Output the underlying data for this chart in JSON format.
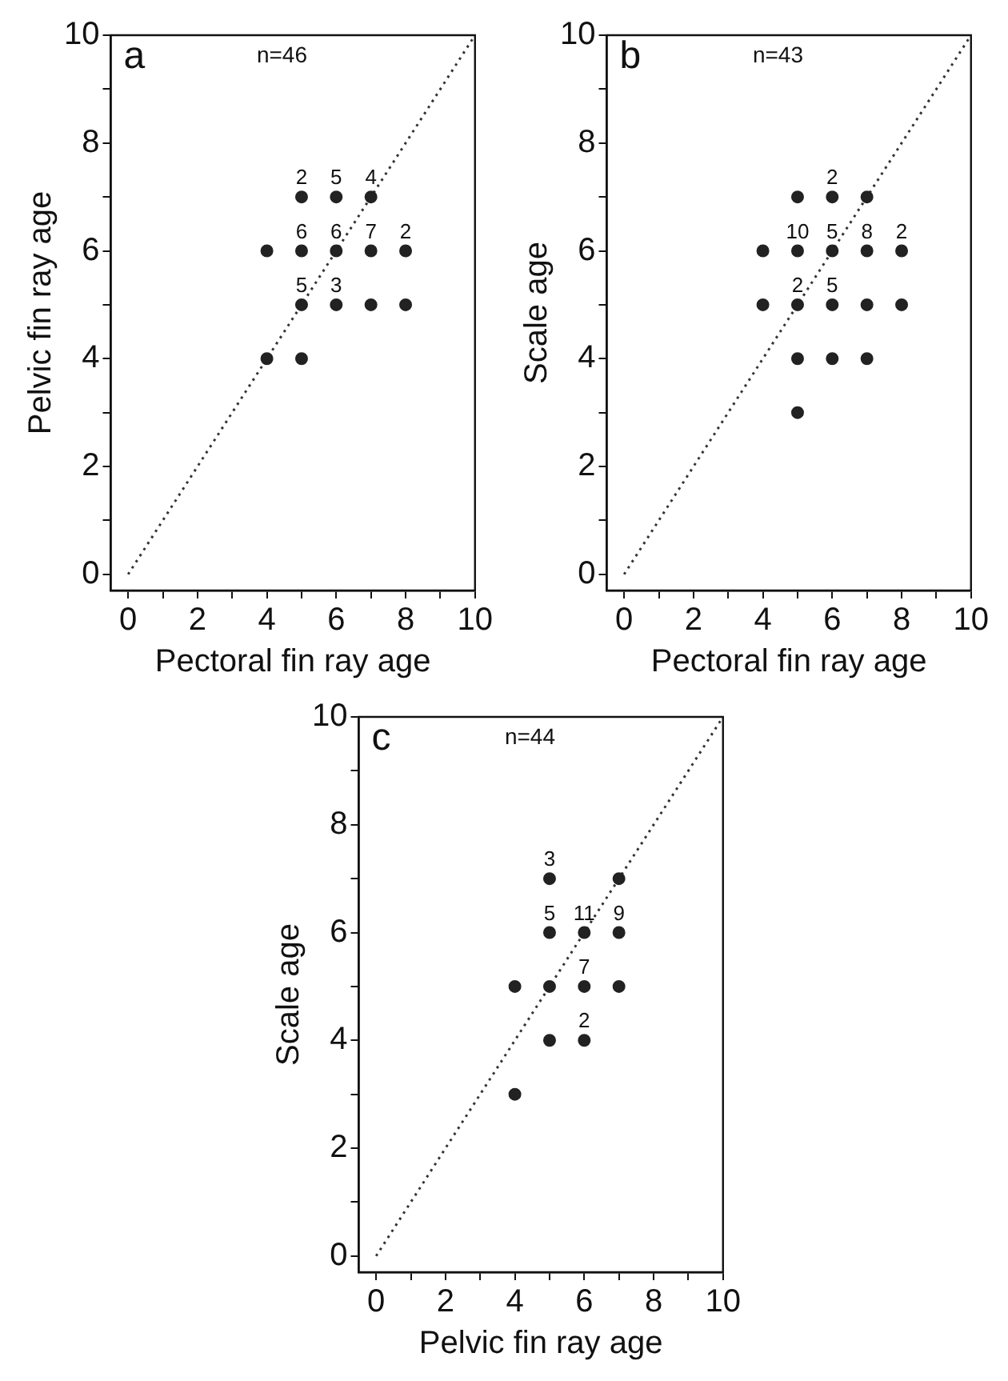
{
  "chart_data": [
    {
      "type": "scatter",
      "xlabel": "Pectoral fin ray age",
      "ylabel": "Pelvic fin ray age",
      "annotations": [
        "a",
        "n=46",
        {
          "text": "2",
          "x": 5,
          "y": 7
        },
        {
          "text": "5",
          "x": 6,
          "y": 7
        },
        {
          "text": "4",
          "x": 7,
          "y": 7
        },
        {
          "text": "6",
          "x": 5,
          "y": 6
        },
        {
          "text": "6",
          "x": 6,
          "y": 6
        },
        {
          "text": "7",
          "x": 7,
          "y": 6
        },
        {
          "text": "2",
          "x": 8,
          "y": 6
        },
        {
          "text": "5",
          "x": 5,
          "y": 5
        },
        {
          "text": "3",
          "x": 6,
          "y": 5
        }
      ],
      "xlim": [
        -0.5,
        10
      ],
      "ylim": [
        -0.3,
        10
      ],
      "xticks": [
        0,
        {
          "value": 1,
          "label": null
        },
        2,
        {
          "value": 3,
          "label": null
        },
        4,
        {
          "value": 5,
          "label": null
        },
        6,
        {
          "value": 7,
          "label": null
        },
        8,
        {
          "value": 9,
          "label": null
        },
        10
      ],
      "yticks": [
        0,
        {
          "value": 1,
          "label": null
        },
        2,
        {
          "value": 3,
          "label": null
        },
        4,
        {
          "value": 5,
          "label": null
        },
        6,
        {
          "value": 7,
          "label": null
        },
        8,
        {
          "value": 9,
          "label": null
        },
        10
      ],
      "grid": false,
      "legend": false,
      "marker": "circle",
      "series": [
        {
          "type": "scatter",
          "color": "#222222",
          "x": [
            5,
            6,
            7,
            4,
            5,
            6,
            7,
            8,
            5,
            6,
            7,
            8,
            4,
            5
          ],
          "values": [
            7,
            7,
            7,
            6,
            6,
            6,
            6,
            6,
            5,
            5,
            5,
            5,
            4,
            4
          ]
        },
        {
          "type": "line",
          "color": "#333333",
          "x": [
            0,
            10
          ],
          "values": [
            0,
            10
          ],
          "line_style": "dotted",
          "marker": "none"
        }
      ]
    },
    {
      "type": "scatter",
      "xlabel": "Pectoral fin ray age",
      "ylabel": "Scale age",
      "annotations": [
        "b",
        "n=43",
        {
          "text": "2",
          "x": 6,
          "y": 7
        },
        {
          "text": "10",
          "x": 5,
          "y": 6
        },
        {
          "text": "5",
          "x": 6,
          "y": 6
        },
        {
          "text": "8",
          "x": 7,
          "y": 6
        },
        {
          "text": "2",
          "x": 8,
          "y": 6
        },
        {
          "text": "2",
          "x": 5,
          "y": 5
        },
        {
          "text": "5",
          "x": 6,
          "y": 5
        }
      ],
      "xlim": [
        -0.5,
        10
      ],
      "ylim": [
        -0.3,
        10
      ],
      "xticks": [
        0,
        {
          "value": 1,
          "label": null
        },
        2,
        {
          "value": 3,
          "label": null
        },
        4,
        {
          "value": 5,
          "label": null
        },
        6,
        {
          "value": 7,
          "label": null
        },
        8,
        {
          "value": 9,
          "label": null
        },
        10
      ],
      "yticks": [
        0,
        {
          "value": 1,
          "label": null
        },
        2,
        {
          "value": 3,
          "label": null
        },
        4,
        {
          "value": 5,
          "label": null
        },
        6,
        {
          "value": 7,
          "label": null
        },
        8,
        {
          "value": 9,
          "label": null
        },
        10
      ],
      "grid": false,
      "legend": false,
      "marker": "circle",
      "series": [
        {
          "type": "scatter",
          "color": "#222222",
          "x": [
            5,
            6,
            7,
            4,
            5,
            6,
            7,
            8,
            4,
            5,
            6,
            7,
            8,
            5,
            6,
            7,
            5
          ],
          "values": [
            7,
            7,
            7,
            6,
            6,
            6,
            6,
            6,
            5,
            5,
            5,
            5,
            5,
            4,
            4,
            4,
            3
          ]
        },
        {
          "type": "line",
          "color": "#333333",
          "x": [
            0,
            10
          ],
          "values": [
            0,
            10
          ],
          "line_style": "dotted",
          "marker": "none"
        }
      ]
    },
    {
      "type": "scatter",
      "xlabel": "Pelvic fin ray age",
      "ylabel": "Scale age",
      "annotations": [
        "c",
        "n=44",
        {
          "text": "3",
          "x": 5,
          "y": 7
        },
        {
          "text": "5",
          "x": 5,
          "y": 6
        },
        {
          "text": "11",
          "x": 6,
          "y": 6
        },
        {
          "text": "9",
          "x": 7,
          "y": 6
        },
        {
          "text": "7",
          "x": 6,
          "y": 5
        },
        {
          "text": "2",
          "x": 6,
          "y": 4
        }
      ],
      "xlim": [
        -0.5,
        10
      ],
      "ylim": [
        -0.3,
        10
      ],
      "xticks": [
        0,
        {
          "value": 1,
          "label": null
        },
        2,
        {
          "value": 3,
          "label": null
        },
        4,
        {
          "value": 5,
          "label": null
        },
        6,
        {
          "value": 7,
          "label": null
        },
        8,
        {
          "value": 9,
          "label": null
        },
        10
      ],
      "yticks": [
        0,
        {
          "value": 1,
          "label": null
        },
        2,
        {
          "value": 3,
          "label": null
        },
        4,
        {
          "value": 5,
          "label": null
        },
        6,
        {
          "value": 7,
          "label": null
        },
        8,
        {
          "value": 9,
          "label": null
        },
        10
      ],
      "grid": false,
      "legend": false,
      "marker": "circle",
      "series": [
        {
          "type": "scatter",
          "color": "#222222",
          "x": [
            5,
            7,
            5,
            6,
            7,
            4,
            5,
            6,
            7,
            5,
            6,
            4
          ],
          "values": [
            7,
            7,
            6,
            6,
            6,
            5,
            5,
            5,
            5,
            4,
            4,
            3
          ]
        },
        {
          "type": "line",
          "color": "#333333",
          "x": [
            0,
            10
          ],
          "values": [
            0,
            10
          ],
          "line_style": "dotted",
          "marker": "none"
        }
      ]
    }
  ]
}
